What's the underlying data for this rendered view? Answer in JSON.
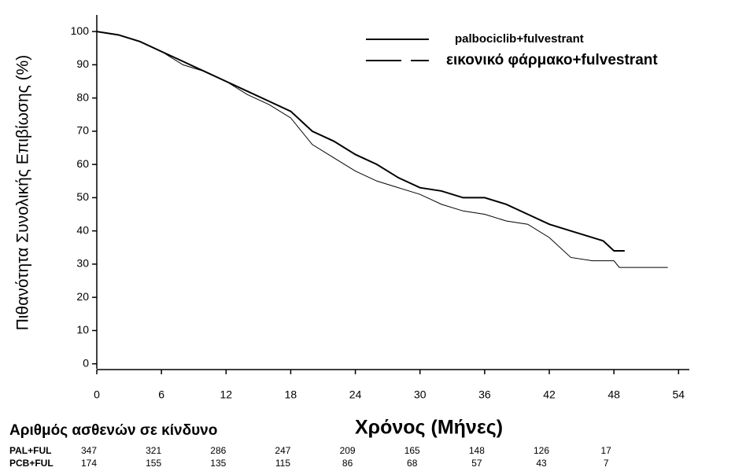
{
  "chart_data": {
    "type": "line",
    "y_label": "Πιθανότητα Συνολικής Επιβίωσης (%)",
    "x_label": "Χρόνος (Μήνες)",
    "xlim": [
      0,
      55
    ],
    "xticks": [
      0,
      6,
      12,
      18,
      24,
      30,
      36,
      42,
      48,
      54
    ],
    "ylim": [
      -1.5,
      105
    ],
    "yticks": [
      0,
      10,
      20,
      30,
      40,
      50,
      60,
      70,
      80,
      90,
      100
    ],
    "legend": "top-right",
    "series": [
      {
        "name": "palbociclib+fulvestrant",
        "color": "#000000",
        "width": 2,
        "x": [
          0,
          2,
          4,
          6,
          8,
          10,
          12,
          14,
          16,
          18,
          20,
          22,
          24,
          26,
          28,
          30,
          32,
          34,
          36,
          38,
          40,
          42,
          44,
          46,
          47,
          48,
          49
        ],
        "values": [
          100,
          99,
          97,
          94,
          91,
          88,
          85,
          82,
          79,
          76,
          70,
          67,
          63,
          60,
          56,
          53,
          52,
          50,
          50,
          48,
          45,
          42,
          40,
          38,
          37,
          34,
          34
        ]
      },
      {
        "name": "εικονικό φάρμακο+fulvestrant",
        "color": "#000000",
        "width": 1,
        "x": [
          0,
          2,
          4,
          6,
          8,
          10,
          12,
          14,
          16,
          18,
          20,
          22,
          24,
          26,
          28,
          30,
          32,
          34,
          36,
          38,
          40,
          42,
          44,
          46,
          48,
          48.5,
          53
        ],
        "values": [
          100,
          99,
          97,
          94,
          90,
          88,
          85,
          81,
          78,
          74,
          66,
          62,
          58,
          55,
          53,
          51,
          48,
          46,
          45,
          43,
          42,
          38,
          32,
          31,
          31,
          29,
          29
        ]
      }
    ],
    "risk_table": {
      "title": "Αριθμός ασθενών σε κίνδυνο",
      "rows": [
        {
          "label": "PAL+FUL",
          "values": [
            347,
            321,
            286,
            247,
            209,
            165,
            148,
            126,
            17
          ]
        },
        {
          "label": "PCB+FUL",
          "values": [
            174,
            155,
            135,
            115,
            86,
            68,
            57,
            43,
            7
          ]
        }
      ]
    }
  }
}
